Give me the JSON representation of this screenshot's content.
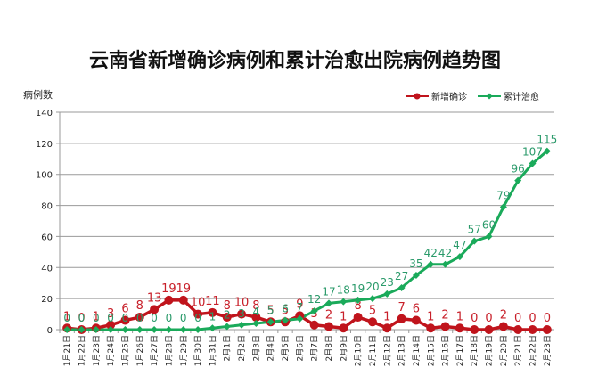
{
  "chart_data": {
    "type": "line",
    "title": "云南省新增确诊病例和累计治愈出院病例趋势图",
    "ylabel": "病例数",
    "xlabel": "",
    "ylim": [
      0,
      140
    ],
    "yticks": [
      0,
      20,
      40,
      60,
      80,
      100,
      120,
      140
    ],
    "grid": true,
    "legend_position": "top-right",
    "categories": [
      "1月21日",
      "1月22日",
      "1月23日",
      "1月24日",
      "1月25日",
      "1月26日",
      "1月27日",
      "1月28日",
      "1月29日",
      "1月30日",
      "1月31日",
      "2月1日",
      "2月2日",
      "2月3日",
      "2月4日",
      "2月5日",
      "2月6日",
      "2月7日",
      "2月8日",
      "2月9日",
      "2月10日",
      "2月11日",
      "2月12日",
      "2月13日",
      "2月14日",
      "2月15日",
      "2月16日",
      "2月17日",
      "2月18日",
      "2月19日",
      "2月20日",
      "2月21日",
      "2月22日",
      "2月23日"
    ],
    "series": [
      {
        "name": "新增确诊",
        "color": "#c0141c",
        "values": [
          1,
          0,
          1,
          3,
          6,
          8,
          13,
          19,
          19,
          10,
          11,
          8,
          10,
          8,
          5,
          5,
          9,
          3,
          2,
          1,
          8,
          5,
          1,
          7,
          6,
          1,
          2,
          1,
          0,
          0,
          2,
          0,
          0,
          0
        ]
      },
      {
        "name": "累计治愈",
        "color": "#1aaa5a",
        "values": [
          0,
          0,
          0,
          0,
          0,
          0,
          0,
          0,
          0,
          0,
          1,
          2,
          3,
          4,
          5,
          6,
          7,
          12,
          17,
          18,
          19,
          20,
          23,
          27,
          35,
          42,
          42,
          47,
          57,
          60,
          79,
          96,
          107,
          115
        ]
      }
    ]
  }
}
